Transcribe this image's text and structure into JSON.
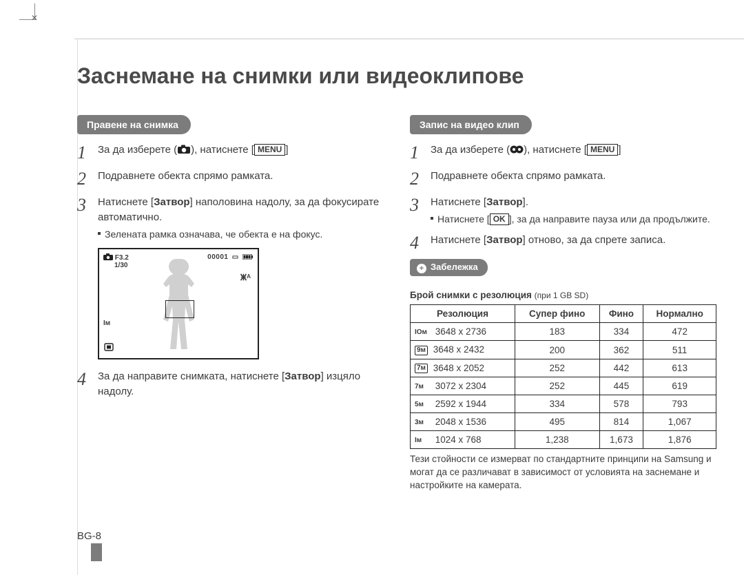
{
  "title": "Заснемане на снимки или видеоклипове",
  "page_number": "BG-8",
  "left": {
    "pill": "Правене на снимка",
    "steps": [
      {
        "n": "1",
        "pre": "За да изберете (",
        "post": "), натиснете [",
        "key": "MENU",
        "tail": "]"
      },
      {
        "n": "2",
        "text": "Подравнете обекта спрямо рамката."
      },
      {
        "n": "3",
        "text_a": "Натиснете [",
        "bold": "Затвор",
        "text_b": "] наполовина надолу, за да фокусирате автоматично.",
        "sub": "Зелената рамка означава, че обекта е на фокус."
      },
      {
        "n": "4",
        "text_a": "За да направите снимката, натиснете [",
        "bold": "Затвор",
        "text_b": "] изцяло надолу."
      }
    ],
    "lcd": {
      "f": "F3.2",
      "sh": "1/30",
      "counter": "00001",
      "flash": "ⵥᴬ",
      "size": "Iм"
    }
  },
  "right": {
    "pill": "Запис на видео клип",
    "steps": [
      {
        "n": "1",
        "pre": "За да изберете (",
        "post": "), натиснете [",
        "key": "MENU",
        "tail": "]"
      },
      {
        "n": "2",
        "text": "Подравнете обекта спрямо рамката."
      },
      {
        "n": "3",
        "text_a": "Натиснете [",
        "bold": "Затвор",
        "text_b": "].",
        "sub_a": "Натиснете [",
        "sub_key": "OK",
        "sub_b": "], за да направите пауза или да продължите."
      },
      {
        "n": "4",
        "text_a": "Натиснете [",
        "bold": "Затвор",
        "text_b": "] отново, за да спрете записа."
      }
    ],
    "note_label": "Забележка",
    "table_caption_bold": "Брой снимки с резолюция",
    "table_caption_light": "(при 1 GB SD)",
    "table": {
      "headers": [
        "Резолюция",
        "Супер фино",
        "Фино",
        "Нормално"
      ],
      "rows": [
        {
          "icon": "IOм",
          "boxed": false,
          "res": "3648 x 2736",
          "c1": "183",
          "c2": "334",
          "c3": "472"
        },
        {
          "icon": "9м",
          "boxed": true,
          "res": "3648 x 2432",
          "c1": "200",
          "c2": "362",
          "c3": "511"
        },
        {
          "icon": "7м",
          "boxed": true,
          "res": "3648 x 2052",
          "c1": "252",
          "c2": "442",
          "c3": "613"
        },
        {
          "icon": "7м",
          "boxed": false,
          "res": "3072 x 2304",
          "c1": "252",
          "c2": "445",
          "c3": "619"
        },
        {
          "icon": "5м",
          "boxed": false,
          "res": "2592 x 1944",
          "c1": "334",
          "c2": "578",
          "c3": "793"
        },
        {
          "icon": "3м",
          "boxed": false,
          "res": "2048 x 1536",
          "c1": "495",
          "c2": "814",
          "c3": "1,067"
        },
        {
          "icon": "Iм",
          "boxed": false,
          "res": "1024 x 768",
          "c1": "1,238",
          "c2": "1,673",
          "c3": "1,876"
        }
      ]
    },
    "footnote": "Тези стойности се измерват по стандартните принципи на Samsung и могат да се различават в зависимост от условията на заснемане и настройките на камерата."
  }
}
